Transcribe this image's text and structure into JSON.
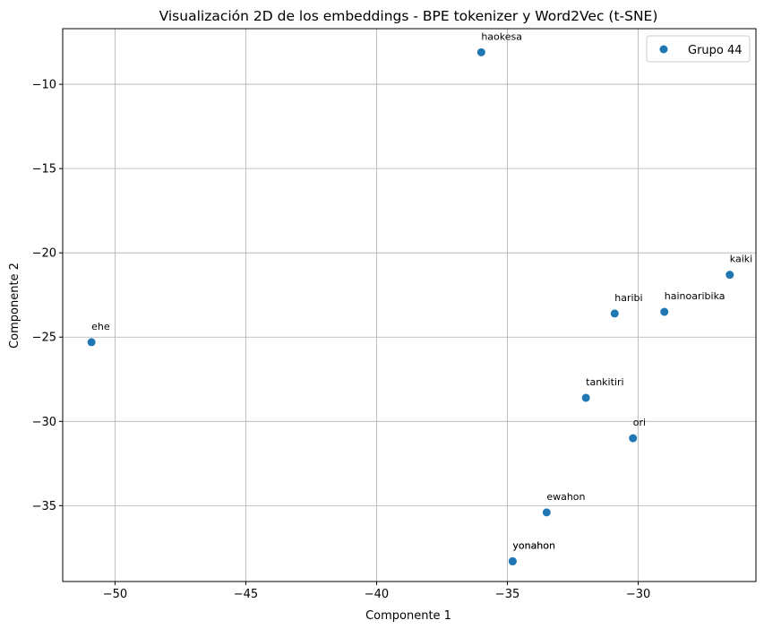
{
  "chart_data": {
    "type": "scatter",
    "title": "Visualización 2D de los embeddings - BPE tokenizer y Word2Vec (t-SNE)",
    "xlabel": "Componente 1",
    "ylabel": "Componente 2",
    "xlim": [
      -52.0,
      -25.5
    ],
    "ylim": [
      -39.5,
      -6.7
    ],
    "xticks": [
      -50,
      -45,
      -40,
      -35,
      -30
    ],
    "yticks": [
      -10,
      -15,
      -20,
      -25,
      -30,
      -35
    ],
    "xtick_labels": [
      "−50",
      "−45",
      "−40",
      "−35",
      "−30"
    ],
    "ytick_labels": [
      "−10",
      "−15",
      "−20",
      "−25",
      "−30",
      "−35"
    ],
    "grid": true,
    "legend_position": "top-right",
    "color": "#1f77b4",
    "series": [
      {
        "name": "Grupo 44",
        "points": [
          {
            "label": "haokesa",
            "x": -36.0,
            "y": -8.1
          },
          {
            "label": "kaiki",
            "x": -26.5,
            "y": -21.3
          },
          {
            "label": "haribi",
            "x": -30.9,
            "y": -23.6
          },
          {
            "label": "hainoaribika",
            "x": -29.0,
            "y": -23.5
          },
          {
            "label": "ehe",
            "x": -50.9,
            "y": -25.3
          },
          {
            "label": "tankitiri",
            "x": -32.0,
            "y": -28.6
          },
          {
            "label": "ori",
            "x": -30.2,
            "y": -31.0
          },
          {
            "label": "ewahon",
            "x": -33.5,
            "y": -35.4
          },
          {
            "label": "yonahon",
            "x": -34.8,
            "y": -38.3
          },
          {
            "label": "yonahon",
            "x": -34.8,
            "y": -38.3
          }
        ]
      }
    ]
  }
}
